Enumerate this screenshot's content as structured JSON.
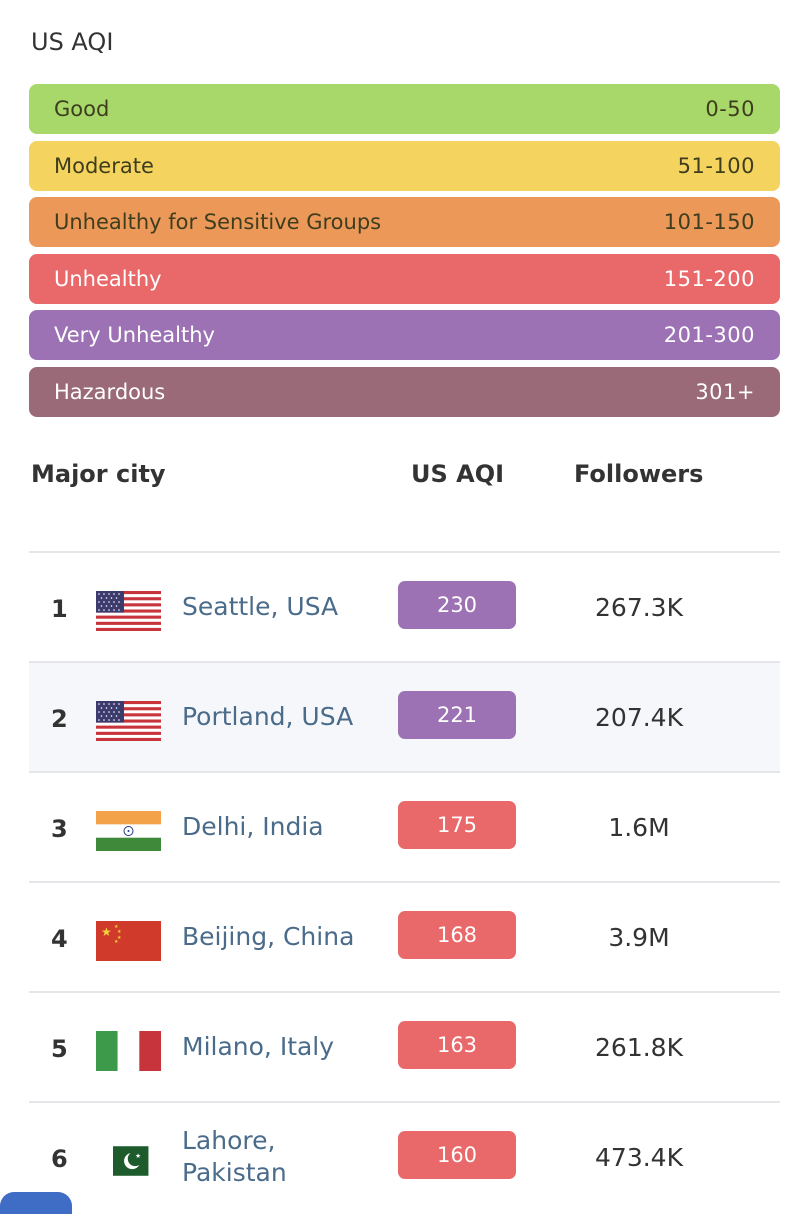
{
  "title": "US AQI",
  "legend": [
    {
      "label": "Good",
      "range": "0-50",
      "color": "#a8d86a"
    },
    {
      "label": "Moderate",
      "range": "51-100",
      "color": "#f4d35e"
    },
    {
      "label": "Unhealthy for Sensitive Groups",
      "range": "101-150",
      "color": "#ec9859"
    },
    {
      "label": "Unhealthy",
      "range": "151-200",
      "color": "#e9696a"
    },
    {
      "label": "Very Unhealthy",
      "range": "201-300",
      "color": "#9c72b4"
    },
    {
      "label": "Hazardous",
      "range": "301+",
      "color": "#9a6a78"
    }
  ],
  "table": {
    "headers": {
      "city": "Major city",
      "aqi": "US AQI",
      "followers": "Followers"
    },
    "rows": [
      {
        "rank": "1",
        "city": "Seattle, USA",
        "flag": "usa-flag-icon",
        "aqi": "230",
        "aqi_color": "#9c72b4",
        "followers": "267.3K"
      },
      {
        "rank": "2",
        "city": "Portland, USA",
        "flag": "usa-flag-icon",
        "aqi": "221",
        "aqi_color": "#9c72b4",
        "followers": "207.4K"
      },
      {
        "rank": "3",
        "city": "Delhi, India",
        "flag": "india-flag-icon",
        "aqi": "175",
        "aqi_color": "#e9696a",
        "followers": "1.6M"
      },
      {
        "rank": "4",
        "city": "Beijing, China",
        "flag": "china-flag-icon",
        "aqi": "168",
        "aqi_color": "#e9696a",
        "followers": "3.9M"
      },
      {
        "rank": "5",
        "city": "Milano, Italy",
        "flag": "italy-flag-icon",
        "aqi": "163",
        "aqi_color": "#e9696a",
        "followers": "261.8K"
      },
      {
        "rank": "6",
        "city": "Lahore, Pakistan",
        "flag": "pakistan-flag-icon",
        "aqi": "160",
        "aqi_color": "#e9696a",
        "followers": "473.4K"
      }
    ]
  }
}
